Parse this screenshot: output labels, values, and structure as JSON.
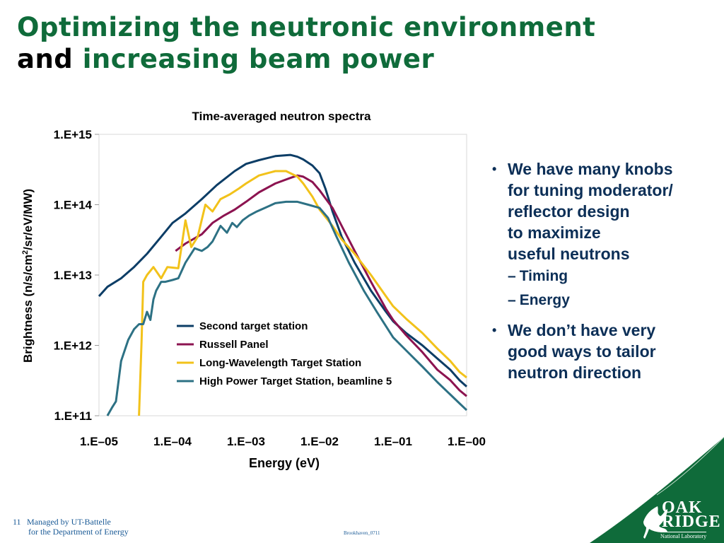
{
  "slide": {
    "title_line1": "Optimizing the neutronic environment",
    "title_and": "and",
    "title_line2": "increasing beam power",
    "bullets": [
      {
        "text": "We have many knobs\nfor tuning moderator/\nreflector design\nto maximize\nuseful neutrons",
        "subitems": [
          "Timing",
          "Energy"
        ]
      },
      {
        "text": "We don’t have very\ngood ways to tailor\nneutron direction"
      }
    ],
    "bullet_glyph": "•",
    "dash_glyph": "–",
    "footer_page": "11",
    "footer_line1": "Managed by UT-Battelle",
    "footer_line2": "for the Department of Energy",
    "footer_code": "Brookhaven_0711",
    "logo_oak": "OAK",
    "logo_ridge": "RIDGE",
    "logo_sub": "National Laboratory",
    "colors": {
      "title_green": "#0f6b3a",
      "text_navy": "#0c2f57",
      "corner_green": "#0f6b3a"
    },
    "icons": {
      "logo": "oak-leaf-logo"
    }
  },
  "chart_data": {
    "type": "line",
    "title": "Time-averaged neutron spectra",
    "xlabel": "Energy (eV)",
    "ylabel_parts": [
      "Brightness (n/s/cm",
      "2",
      "/sr/eV/MW)"
    ],
    "x_scale": "log",
    "y_scale": "log",
    "xlim": [
      1e-05,
      1
    ],
    "ylim": [
      100000000000.0,
      1000000000000000.0
    ],
    "x_tick_labels": [
      "1.E–05",
      "1.E–04",
      "1.E–03",
      "1.E–02",
      "1.E–01",
      "1.E–00"
    ],
    "y_tick_labels": [
      "1.E+15",
      "1.E+14",
      "1.E+13",
      "1.E+12",
      "1.E+11"
    ],
    "legend_position": "center",
    "grid": false,
    "series": [
      {
        "name": "Second target station",
        "color": "#0c3d66",
        "x": [
          1e-05,
          1.3e-05,
          2e-05,
          3e-05,
          4.5e-05,
          7e-05,
          0.0001,
          0.00015,
          0.00025,
          0.0004,
          0.0007,
          0.001,
          0.0015,
          0.0025,
          0.004,
          0.005,
          0.006,
          0.008,
          0.01,
          0.012,
          0.015,
          0.02,
          0.03,
          0.05,
          0.08,
          0.1,
          0.15,
          0.25,
          0.4,
          0.6,
          0.8,
          1.0
        ],
        "y": [
          5000000000000.0,
          6800000000000.0,
          9000000000000.0,
          13000000000000.0,
          20000000000000.0,
          35000000000000.0,
          55000000000000.0,
          75000000000000.0,
          120000000000000.0,
          190000000000000.0,
          300000000000000.0,
          380000000000000.0,
          430000000000000.0,
          490000000000000.0,
          510000000000000.0,
          480000000000000.0,
          440000000000000.0,
          360000000000000.0,
          280000000000000.0,
          170000000000000.0,
          80000000000000.0,
          35000000000000.0,
          15000000000000.0,
          6000000000000.0,
          3000000000000.0,
          2200000000000.0,
          1500000000000.0,
          1000000000000.0,
          650000000000.0,
          450000000000.0,
          320000000000.0,
          260000000000.0
        ]
      },
      {
        "name": "Russell Panel",
        "color": "#8c1350",
        "x": [
          0.00011,
          0.00015,
          0.00025,
          0.00035,
          0.0005,
          0.0007,
          0.001,
          0.0015,
          0.0025,
          0.004,
          0.005,
          0.006,
          0.008,
          0.01,
          0.015,
          0.02,
          0.03,
          0.05,
          0.08,
          0.1,
          0.15,
          0.25,
          0.4,
          0.6,
          0.8,
          1.0
        ],
        "y": [
          22000000000000.0,
          28000000000000.0,
          38000000000000.0,
          55000000000000.0,
          70000000000000.0,
          85000000000000.0,
          110000000000000.0,
          150000000000000.0,
          200000000000000.0,
          240000000000000.0,
          260000000000000.0,
          250000000000000.0,
          210000000000000.0,
          160000000000000.0,
          90000000000000.0,
          50000000000000.0,
          22000000000000.0,
          8000000000000.0,
          3300000000000.0,
          2300000000000.0,
          1400000000000.0,
          800000000000.0,
          450000000000.0,
          320000000000.0,
          230000000000.0,
          190000000000.0
        ]
      },
      {
        "name": "Long-Wavelength Target Station",
        "color": "#f2c21a",
        "x": [
          3.5e-05,
          3.8e-05,
          4e-05,
          4.5e-05,
          5.5e-05,
          7e-05,
          8.5e-05,
          0.00012,
          0.00015,
          0.00018,
          0.00022,
          0.00028,
          0.00035,
          0.00045,
          0.0006,
          0.0008,
          0.001,
          0.0015,
          0.0025,
          0.0035,
          0.005,
          0.006,
          0.008,
          0.01,
          0.015,
          0.02,
          0.03,
          0.05,
          0.08,
          0.1,
          0.15,
          0.25,
          0.4,
          0.6,
          0.8,
          1.0
        ],
        "y": [
          100000000000.0,
          1200000000000.0,
          8000000000000.0,
          10000000000000.0,
          13000000000000.0,
          9000000000000.0,
          13000000000000.0,
          12500000000000.0,
          60000000000000.0,
          25000000000000.0,
          35000000000000.0,
          100000000000000.0,
          80000000000000.0,
          120000000000000.0,
          140000000000000.0,
          170000000000000.0,
          200000000000000.0,
          260000000000000.0,
          300000000000000.0,
          300000000000000.0,
          250000000000000.0,
          200000000000000.0,
          130000000000000.0,
          85000000000000.0,
          50000000000000.0,
          32000000000000.0,
          20000000000000.0,
          10000000000000.0,
          5000000000000.0,
          3600000000000.0,
          2400000000000.0,
          1500000000000.0,
          900000000000.0,
          600000000000.0,
          420000000000.0,
          350000000000.0
        ]
      },
      {
        "name": "High Power Target Station, beamline 5",
        "color": "#2d7184",
        "x": [
          1.3e-05,
          1.5e-05,
          1.7e-05,
          2e-05,
          2.5e-05,
          3e-05,
          3.5e-05,
          4e-05,
          4.5e-05,
          5e-05,
          5.5e-05,
          6e-05,
          7e-05,
          8e-05,
          0.0001,
          0.00012,
          0.00015,
          0.0002,
          0.00025,
          0.0003,
          0.00035,
          0.00045,
          0.00055,
          0.00065,
          0.00075,
          0.0009,
          0.0011,
          0.0014,
          0.0018,
          0.0025,
          0.0035,
          0.005,
          0.007,
          0.01,
          0.013,
          0.017,
          0.025,
          0.04,
          0.06,
          0.1,
          0.15,
          0.25,
          0.4,
          0.6,
          0.8,
          1.0
        ],
        "y": [
          100000000000.0,
          130000000000.0,
          160000000000.0,
          600000000000.0,
          1200000000000.0,
          1700000000000.0,
          2000000000000.0,
          2000000000000.0,
          3000000000000.0,
          2300000000000.0,
          4500000000000.0,
          6000000000000.0,
          8000000000000.0,
          8000000000000.0,
          8500000000000.0,
          9000000000000.0,
          15000000000000.0,
          24000000000000.0,
          22000000000000.0,
          25000000000000.0,
          30000000000000.0,
          50000000000000.0,
          40000000000000.0,
          55000000000000.0,
          48000000000000.0,
          60000000000000.0,
          70000000000000.0,
          80000000000000.0,
          90000000000000.0,
          105000000000000.0,
          110000000000000.0,
          110000000000000.0,
          100000000000000.0,
          90000000000000.0,
          65000000000000.0,
          35000000000000.0,
          15000000000000.0,
          6000000000000.0,
          3000000000000.0,
          1300000000000.0,
          850000000000.0,
          500000000000.0,
          300000000000.0,
          200000000000.0,
          150000000000.0,
          120000000000.0
        ]
      }
    ]
  }
}
